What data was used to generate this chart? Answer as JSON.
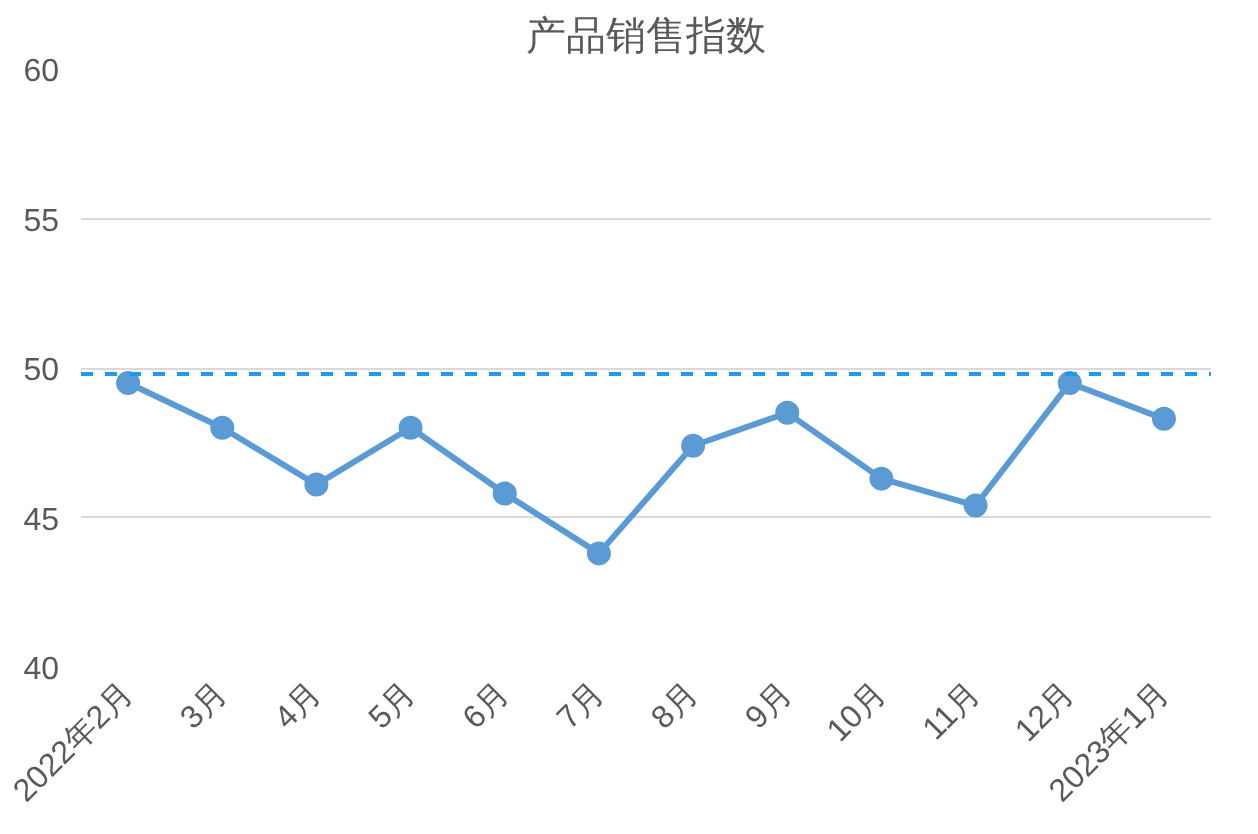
{
  "chart_data": {
    "type": "line",
    "title": "产品销售指数",
    "categories": [
      "2022年2月",
      "3月",
      "4月",
      "5月",
      "6月",
      "7月",
      "8月",
      "9月",
      "10月",
      "11月",
      "12月",
      "2023年1月"
    ],
    "series": [
      {
        "color": "#5b9bd5",
        "values": [
          49.5,
          48.0,
          46.1,
          48.0,
          45.8,
          43.8,
          47.4,
          48.5,
          46.3,
          45.4,
          49.5,
          48.3
        ]
      }
    ],
    "ylim": [
      40,
      60
    ],
    "yticks": [
      40,
      45,
      50,
      55,
      60
    ],
    "grid": "y",
    "marker": "circle",
    "line_style": "solid",
    "ref_lines": [
      {
        "axis": "y",
        "value": 49.8,
        "label": null,
        "color": "#1e9bf0",
        "line_style": "dashed"
      }
    ]
  }
}
